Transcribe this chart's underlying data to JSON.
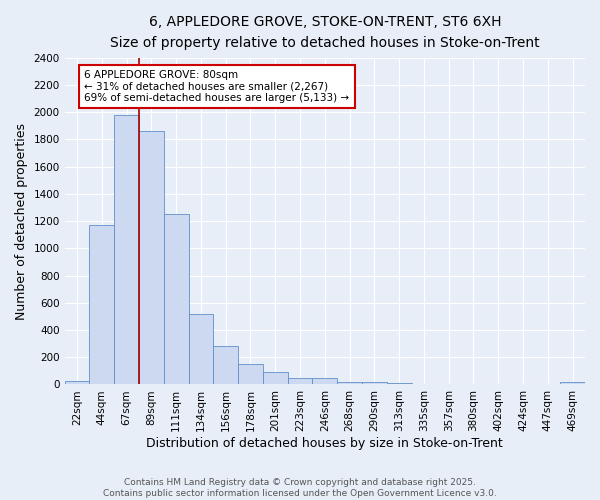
{
  "title1": "6, APPLEDORE GROVE, STOKE-ON-TRENT, ST6 6XH",
  "title2": "Size of property relative to detached houses in Stoke-on-Trent",
  "xlabel": "Distribution of detached houses by size in Stoke-on-Trent",
  "ylabel": "Number of detached properties",
  "categories": [
    "22sqm",
    "44sqm",
    "67sqm",
    "89sqm",
    "111sqm",
    "134sqm",
    "156sqm",
    "178sqm",
    "201sqm",
    "223sqm",
    "246sqm",
    "268sqm",
    "290sqm",
    "313sqm",
    "335sqm",
    "357sqm",
    "380sqm",
    "402sqm",
    "424sqm",
    "447sqm",
    "469sqm"
  ],
  "values": [
    25,
    1170,
    1980,
    1860,
    1250,
    520,
    280,
    150,
    90,
    45,
    45,
    20,
    20,
    8,
    5,
    5,
    5,
    4,
    4,
    4,
    18
  ],
  "bar_color": "#ccd9f0",
  "bar_edge_color": "#6090c8",
  "vline_x": 2.5,
  "vline_color": "#aa0000",
  "annotation_text": "6 APPLEDORE GROVE: 80sqm\n← 31% of detached houses are smaller (2,267)\n69% of semi-detached houses are larger (5,133) →",
  "annotation_box_color": "#ffffff",
  "annotation_box_edge": "#cc0000",
  "ylim": [
    0,
    2400
  ],
  "yticks": [
    0,
    200,
    400,
    600,
    800,
    1000,
    1200,
    1400,
    1600,
    1800,
    2000,
    2200,
    2400
  ],
  "bg_color": "#e8eef8",
  "grid_color": "#ffffff",
  "footer_text": "Contains HM Land Registry data © Crown copyright and database right 2025.\nContains public sector information licensed under the Open Government Licence v3.0.",
  "title_fontsize": 10,
  "subtitle_fontsize": 9,
  "axis_label_fontsize": 9,
  "tick_fontsize": 7.5,
  "annotation_fontsize": 7.5,
  "footer_fontsize": 6.5
}
